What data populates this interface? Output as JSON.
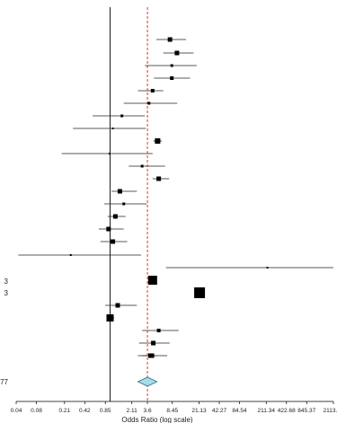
{
  "chart_data": {
    "type": "forest",
    "x_scale": "log",
    "xlabel": "Odds Ratio (log scale)",
    "xticks": [
      "0.04",
      "0.08",
      "0.21",
      "0.42",
      "0.85",
      "2.11",
      "3.6",
      "8.45",
      "21.13",
      "42.27",
      "84.54",
      "211.34",
      "422.68",
      "845.37",
      "2113.42"
    ],
    "xtick_values": [
      0.04,
      0.08,
      0.21,
      0.42,
      0.85,
      2.11,
      3.6,
      8.45,
      21.13,
      42.27,
      84.54,
      211.34,
      422.68,
      845.37,
      2113.42
    ],
    "xlim": [
      0.04,
      2113.42
    ],
    "null_line": 1,
    "pooled_line": 3.6,
    "studies": [
      {
        "or": 7.8,
        "lo": 4.9,
        "hi": 13.5
      },
      {
        "or": 9.9,
        "lo": 6.2,
        "hi": 17.5
      },
      {
        "or": 8.3,
        "lo": 3.3,
        "hi": 19.5
      },
      {
        "or": 8.3,
        "lo": 4.5,
        "hi": 15.5
      },
      {
        "or": 4.3,
        "lo": 2.6,
        "hi": 6.2
      },
      {
        "or": 3.8,
        "lo": 1.6,
        "hi": 10.0
      },
      {
        "or": 1.5,
        "lo": 0.55,
        "hi": 3.3
      },
      {
        "or": 1.1,
        "lo": 0.28,
        "hi": 3.4
      },
      {
        "or": 5.1,
        "lo": 4.4,
        "hi": 5.9
      },
      {
        "or": 0.98,
        "lo": 0.19,
        "hi": 4.3
      },
      {
        "or": 3.0,
        "lo": 1.9,
        "hi": 6.6
      },
      {
        "or": 5.3,
        "lo": 4.3,
        "hi": 7.6
      },
      {
        "or": 1.4,
        "lo": 1.05,
        "hi": 2.5
      },
      {
        "or": 1.6,
        "lo": 0.82,
        "hi": 3.5
      },
      {
        "or": 1.2,
        "lo": 0.92,
        "hi": 1.7
      },
      {
        "or": 0.95,
        "lo": 0.68,
        "hi": 1.6
      },
      {
        "or": 1.1,
        "lo": 0.72,
        "hi": 1.8
      },
      {
        "or": 0.26,
        "lo": 0.043,
        "hi": 2.9
      },
      {
        "or": 220,
        "lo": 6.8,
        "hi": 2113.42
      },
      {
        "or": 4.3,
        "lo": 3.9,
        "hi": 4.8
      },
      {
        "or": 21.5,
        "lo": 18.5,
        "hi": 24.8
      },
      {
        "or": 1.3,
        "lo": 0.85,
        "hi": 2.5
      },
      {
        "or": 1.0,
        "lo": 0.9,
        "hi": 1.15
      },
      {
        "or": 5.3,
        "lo": 3.0,
        "hi": 10.5
      },
      {
        "or": 4.4,
        "lo": 2.7,
        "hi": 7.7
      },
      {
        "or": 4.2,
        "lo": 2.6,
        "hi": 7.1
      },
      {
        "or": 4.0,
        "lo": 3.0,
        "hi": 4.9
      }
    ],
    "pooled": {
      "or": 3.6,
      "lo": 2.6,
      "hi": 5.0
    },
    "row_labels": [
      {
        "text": "3"
      },
      {
        "text": "3"
      },
      {
        "text": "77"
      }
    ]
  },
  "colors": {
    "marker": "#000000",
    "ci_line": "#222222",
    "null_line": "#000000",
    "pooled_line": "#e00000",
    "diamond_fill": "#a7dbe8",
    "diamond_stroke": "#2a6f8a"
  }
}
